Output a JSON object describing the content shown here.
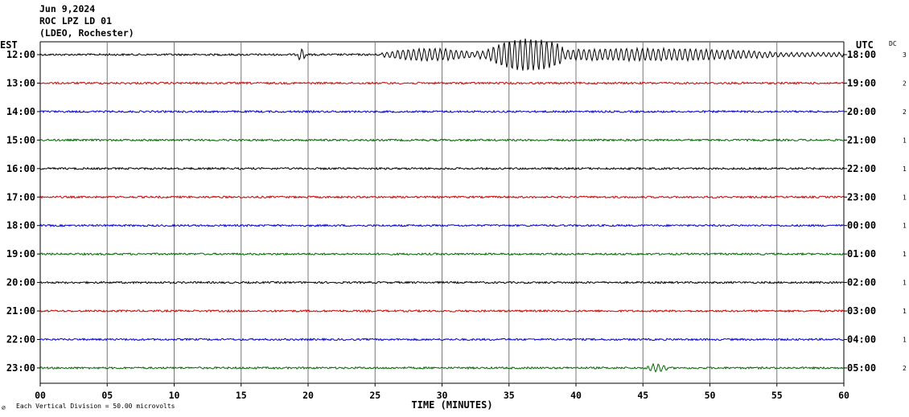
{
  "header": {
    "date": "Jun 9,2024",
    "station": "ROC LPZ LD 01",
    "network": "(LDEO, Rochester)"
  },
  "left_axis_title": "EST",
  "right_axis_title": "UTC",
  "dc_title": "DC",
  "footer": {
    "scale_note": "Each Vertical Division =   50.00 microvolts",
    "corner_mark": "⌀"
  },
  "chart_data": {
    "type": "line",
    "title": "",
    "xlabel": "TIME (MINUTES)",
    "xlim": [
      0,
      60
    ],
    "x_ticks": [
      "00",
      "05",
      "10",
      "15",
      "20",
      "25",
      "30",
      "35",
      "40",
      "45",
      "50",
      "55",
      "60"
    ],
    "x_tick_values": [
      0,
      5,
      10,
      15,
      20,
      25,
      30,
      35,
      40,
      45,
      50,
      55,
      60
    ],
    "grid": true,
    "colors": [
      "#000000",
      "#cc0000",
      "#0000cc",
      "#006600"
    ],
    "rows": [
      {
        "est": "12:00",
        "utc": "18:00",
        "dc": "3",
        "color": "#000000"
      },
      {
        "est": "13:00",
        "utc": "19:00",
        "dc": "2",
        "color": "#cc0000"
      },
      {
        "est": "14:00",
        "utc": "20:00",
        "dc": "2",
        "color": "#0000cc"
      },
      {
        "est": "15:00",
        "utc": "21:00",
        "dc": "1",
        "color": "#006600"
      },
      {
        "est": "16:00",
        "utc": "22:00",
        "dc": "1",
        "color": "#000000"
      },
      {
        "est": "17:00",
        "utc": "23:00",
        "dc": "1",
        "color": "#cc0000"
      },
      {
        "est": "18:00",
        "utc": "00:00",
        "dc": "1",
        "color": "#0000cc"
      },
      {
        "est": "19:00",
        "utc": "01:00",
        "dc": "1",
        "color": "#006600"
      },
      {
        "est": "20:00",
        "utc": "02:00",
        "dc": "1",
        "color": "#000000"
      },
      {
        "est": "21:00",
        "utc": "03:00",
        "dc": "1",
        "color": "#cc0000"
      },
      {
        "est": "22:00",
        "utc": "04:00",
        "dc": "1",
        "color": "#0000cc"
      },
      {
        "est": "23:00",
        "utc": "05:00",
        "dc": "2",
        "color": "#006600"
      }
    ],
    "events": [
      {
        "row": 0,
        "start_min": 32.5,
        "end_min": 39,
        "peak_min": 36.5,
        "amplitude": 3.0
      },
      {
        "row": 0,
        "start_min": 25.5,
        "end_min": 32.5,
        "peak_min": 29,
        "amplitude": 1.0
      },
      {
        "row": 0,
        "start_min": 39,
        "end_min": 60,
        "peak_min": 45,
        "amplitude": 1.0
      },
      {
        "row": 0,
        "start_min": 19.2,
        "end_min": 19.8,
        "peak_min": 19.5,
        "amplitude": 1.0
      },
      {
        "row": 11,
        "start_min": 45.3,
        "end_min": 46.8,
        "peak_min": 46,
        "amplitude": 0.6
      }
    ]
  }
}
